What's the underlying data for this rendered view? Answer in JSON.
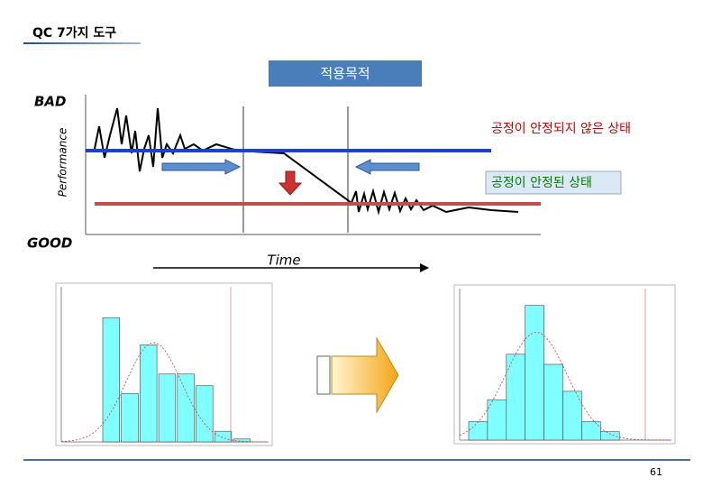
{
  "header": {
    "title": "QC 7가지 도구"
  },
  "diagram": {
    "purpose": "적용목적",
    "bad": "BAD",
    "good": "GOOD",
    "y_label": "Performance",
    "x_label": "Time",
    "unstable": "공정이 안정되지 않은 상태",
    "stable": "공정이 안정된 상태"
  },
  "histograms": [
    {
      "values": [
        6.4,
        2.5,
        5.0,
        3.5,
        3.5,
        2.9,
        0.55,
        0.15
      ],
      "ylim": [
        0,
        8
      ]
    },
    {
      "values": [
        1.1,
        2.4,
        5.1,
        8.0,
        4.5,
        2.9,
        1.1,
        0.5
      ],
      "ylim": [
        0,
        9
      ]
    }
  ],
  "footer": {
    "page": "61"
  }
}
